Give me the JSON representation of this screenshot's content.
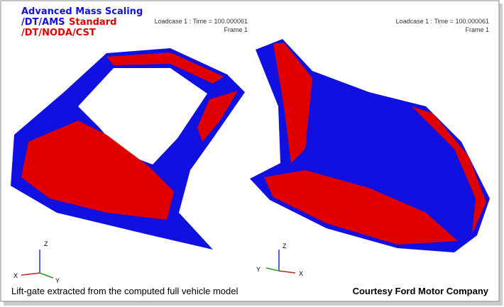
{
  "legend": {
    "line1": "Advanced Mass Scaling",
    "line2_ams": "/DT/AMS",
    "line2_standard": "Standard",
    "line3": "/DT/NODA/CST"
  },
  "views": [
    {
      "loadcase": "Loadcase 1 : Time = 100.000061",
      "frame": "Frame 1",
      "axes": {
        "z": "Z",
        "x": "X",
        "y": "Y"
      }
    },
    {
      "loadcase": "Loadcase 1 : Time = 100.000061",
      "frame": "Frame 1",
      "axes": {
        "z": "Z",
        "y": "Y",
        "x": "X"
      }
    }
  ],
  "caption": "Lift-gate extracted from the computed full vehicle model",
  "credit": "Courtesy Ford Motor Company"
}
